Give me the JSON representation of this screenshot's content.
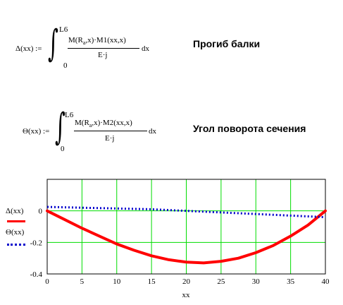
{
  "formula1": {
    "lhs": "Δ(xx) :=",
    "upper": "L6",
    "lower": "0",
    "numerator_a": "M(R",
    "numerator_sub": "a",
    "numerator_b": ",x)·M1(xx,x)",
    "denominator": "E·j",
    "dx": "dx",
    "caption": "Прогиб балки"
  },
  "formula2": {
    "lhs": "Θ(xx) :=",
    "upper": "L6",
    "lower": "0",
    "numerator_a": "M(R",
    "numerator_sub": "a",
    "numerator_b": ",x)·M2(xx,x)",
    "denominator": "E·j",
    "dx": "dx",
    "caption": "Угол поворота сечения"
  },
  "legend": {
    "series1": "Δ(xx)",
    "series2": "Θ(xx)"
  },
  "colors": {
    "series1": "#ff0000",
    "series2": "#0000cc",
    "grid": "#00dd00",
    "zero_line": "#00dd00"
  },
  "chart_data": {
    "type": "line",
    "xlabel": "xx",
    "ylabel": "",
    "xlim": [
      0,
      40
    ],
    "ylim": [
      -0.4,
      0.2
    ],
    "x_ticks": [
      0,
      5,
      10,
      15,
      20,
      25,
      30,
      35,
      40
    ],
    "y_ticks": [
      0,
      -0.2,
      -0.4
    ],
    "y_tick_labels": [
      "0",
      "-0.2",
      "-0.4"
    ],
    "grid": true,
    "series": [
      {
        "name": "Δ(xx)",
        "style": "solid",
        "x": [
          0,
          2.5,
          5,
          7.5,
          10,
          12.5,
          15,
          17.5,
          20,
          22.5,
          25,
          27.5,
          30,
          32.5,
          35,
          37.5,
          40
        ],
        "values": [
          0,
          -0.055,
          -0.11,
          -0.16,
          -0.21,
          -0.25,
          -0.285,
          -0.31,
          -0.325,
          -0.33,
          -0.32,
          -0.3,
          -0.265,
          -0.22,
          -0.16,
          -0.09,
          0
        ]
      },
      {
        "name": "Θ(xx)",
        "style": "dotted",
        "x": [
          0,
          5,
          10,
          15,
          20,
          25,
          30,
          35,
          40
        ],
        "values": [
          0.025,
          0.02,
          0.015,
          0.01,
          0.0,
          -0.01,
          -0.02,
          -0.03,
          -0.04
        ]
      }
    ]
  }
}
